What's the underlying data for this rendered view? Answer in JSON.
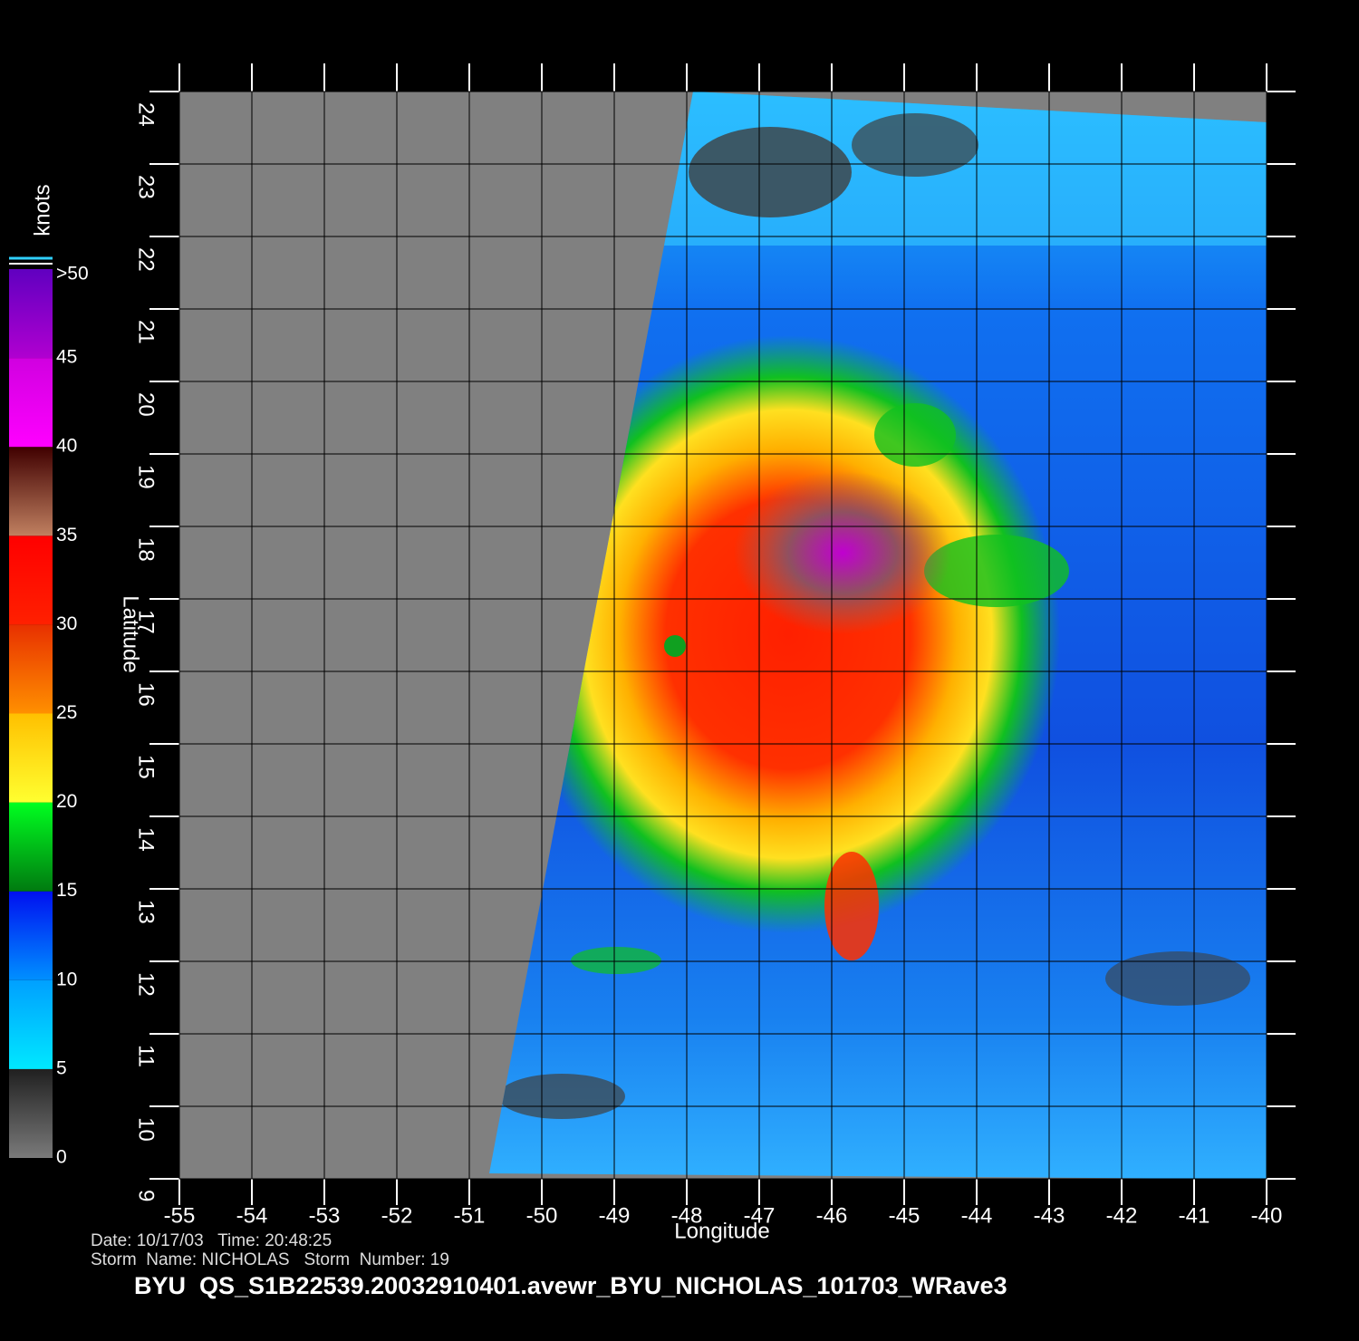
{
  "map": {
    "xlabel": "Longitude",
    "ylabel": "Latitude",
    "xlim": [
      -55,
      -40
    ],
    "ylim": [
      9,
      24
    ],
    "xticks": [
      -55,
      -54,
      -53,
      -52,
      -51,
      -50,
      -49,
      -48,
      -47,
      -46,
      -45,
      -44,
      -43,
      -42,
      -41,
      -40
    ],
    "yticks": [
      9,
      10,
      11,
      12,
      13,
      14,
      15,
      16,
      17,
      18,
      19,
      20,
      21,
      22,
      23,
      24
    ],
    "grid": true,
    "colorbar": {
      "title": "knots",
      "lim": [
        0,
        50
      ],
      "ticks": [
        0,
        5,
        10,
        15,
        20,
        25,
        30,
        35,
        40,
        45,
        {
          "value": 50,
          "label": ">50"
        }
      ],
      "colors": [
        [
          "#7a7a7a",
          "#202020"
        ],
        [
          "#00e8ff",
          "#00a0ff"
        ],
        [
          "#0090ff",
          "#0010f0"
        ],
        [
          "#007a10",
          "#00ff20"
        ],
        [
          "#ffff30",
          "#ffc000"
        ],
        [
          "#ff9000",
          "#e83000"
        ],
        [
          "#ff2000",
          "#ff0000"
        ],
        [
          "#c08060",
          "#400000"
        ],
        [
          "#ff00ff",
          "#d000e0"
        ],
        [
          "#b000d0",
          "#6000c0"
        ]
      ]
    },
    "info": [
      "Date: 10/17/03   Time: 20:48:25",
      "Storm  Name: NICHOLAS   Storm  Number: 19"
    ],
    "product": "BYU  QS_S1B22539.20032910401.avewr_BYU_NICHOLAS_101703_WRave3"
  }
}
